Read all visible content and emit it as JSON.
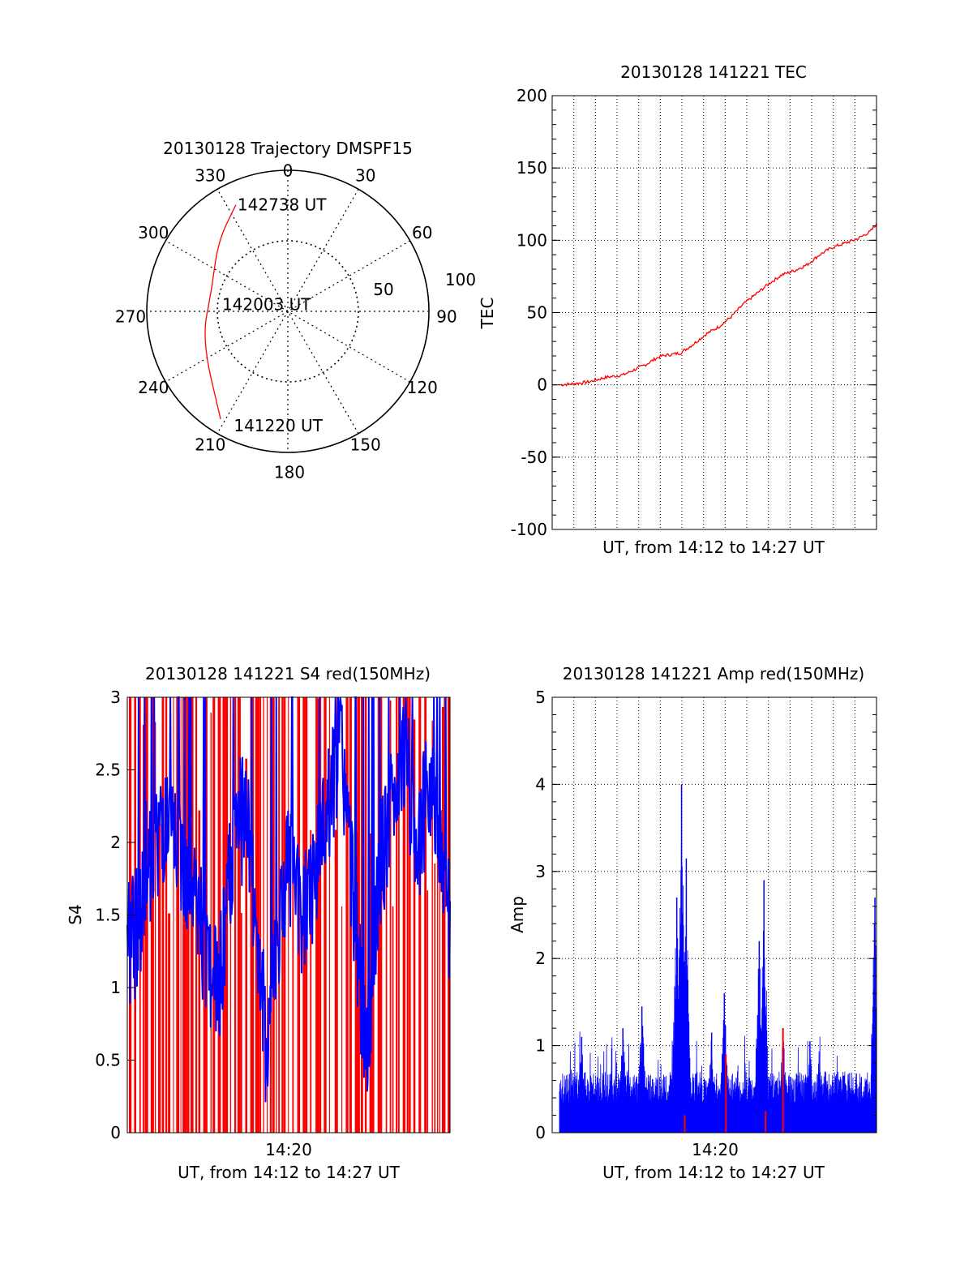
{
  "colors": {
    "trace": "#ff0000",
    "s4_blue": "#0000ff",
    "axis": "#000000",
    "grid": "#000000"
  },
  "chart_data": [
    {
      "id": "trajectory",
      "type": "polar",
      "title": "20130128 Trajectory DMSPF15",
      "azimuth_labels": [
        "0",
        "30",
        "60",
        "90",
        "120",
        "150",
        "180",
        "210",
        "240",
        "270",
        "300",
        "330"
      ],
      "radial_labels": [
        "50",
        "100"
      ],
      "rlim": [
        0,
        100
      ],
      "grid": true,
      "track": {
        "points": [
          [
            334,
            84
          ],
          [
            315,
            70
          ],
          [
            285,
            56
          ],
          [
            252,
            64
          ],
          [
            212,
            90
          ]
        ],
        "labels": [
          {
            "text": "142738 UT",
            "az": 334,
            "r": 84
          },
          {
            "text": "142003 UT",
            "az": 276,
            "r": 48
          },
          {
            "text": "141220 UT",
            "az": 206,
            "r": 90
          }
        ]
      }
    },
    {
      "id": "tec",
      "type": "line",
      "title": "20130128 141221 TEC",
      "xlabel": "UT, from 14:12 to 14:27 UT",
      "ylabel": "TEC",
      "ylim": [
        -100,
        200
      ],
      "yticks": [
        "-100",
        "-50",
        "0",
        "50",
        "100",
        "150",
        "200"
      ],
      "grid": true,
      "x": [
        0,
        0.05,
        0.09,
        0.14,
        0.2,
        0.22,
        0.27,
        0.3,
        0.32,
        0.35,
        0.38,
        0.42,
        0.46,
        0.5,
        0.54,
        0.58,
        0.62,
        0.66,
        0.7,
        0.74,
        0.78,
        0.82,
        0.86,
        0.9,
        0.94,
        0.98,
        1.0
      ],
      "values": [
        0,
        1,
        2,
        5,
        7,
        9,
        14,
        18,
        20,
        21,
        22,
        28,
        35,
        40,
        47,
        56,
        63,
        70,
        76,
        79,
        83,
        90,
        95,
        98,
        101,
        106,
        111
      ]
    },
    {
      "id": "s4",
      "type": "line",
      "title": "20130128 141221 S4 red(150MHz)",
      "xlabel": "UT, from 14:12 to 14:27 UT",
      "ylabel": "S4",
      "ylim": [
        0,
        3
      ],
      "yticks": [
        "0",
        "0.5",
        "1",
        "1.5",
        "2",
        "2.5",
        "3"
      ],
      "xtick_labels": [
        "14:20"
      ],
      "grid": false,
      "series": [
        {
          "x": [
            0,
            0.02,
            0.04,
            0.06,
            0.08,
            0.1,
            0.13,
            0.16,
            0.19,
            0.22,
            0.25,
            0.28,
            0.31,
            0.34,
            0.37,
            0.4,
            0.43,
            0.46,
            0.5,
            0.54,
            0.58,
            0.62,
            0.66,
            0.7,
            0.74,
            0.78,
            0.82,
            0.86,
            0.9,
            0.94,
            0.97,
            1.0
          ],
          "values": [
            1.3,
            1.35,
            1.45,
            1.9,
            1.85,
            2.1,
            2.0,
            1.9,
            1.7,
            1.5,
            1.2,
            0.9,
            1.6,
            2.1,
            2.2,
            1.4,
            0.6,
            1.2,
            1.9,
            1.4,
            1.8,
            2.2,
            2.7,
            1.6,
            0.5,
            1.8,
            2.2,
            2.6,
            2.0,
            2.4,
            2.1,
            1.4
          ]
        }
      ]
    },
    {
      "id": "amp",
      "type": "bar",
      "title": "20130128 141221 Amp red(150MHz)",
      "xlabel": "UT, from 14:12 to 14:27 UT",
      "ylabel": "Amp",
      "ylim": [
        0,
        5
      ],
      "yticks": [
        "0",
        "1",
        "2",
        "3",
        "4",
        "5"
      ],
      "xtick_labels": [
        "14:20"
      ],
      "grid": true,
      "peaks": [
        {
          "x": 0.385,
          "value": 4.0
        },
        {
          "x": 0.4,
          "value": 3.15
        },
        {
          "x": 0.37,
          "value": 2.7
        },
        {
          "x": 0.645,
          "value": 2.9
        },
        {
          "x": 0.63,
          "value": 2.2
        },
        {
          "x": 0.995,
          "value": 2.7
        },
        {
          "x": 0.26,
          "value": 1.45
        },
        {
          "x": 0.52,
          "value": 1.6
        },
        {
          "x": 0.705,
          "value": 1.2
        },
        {
          "x": 0.79,
          "value": 1.05
        },
        {
          "x": 0.48,
          "value": 1.15
        },
        {
          "x": 0.2,
          "value": 1.2
        },
        {
          "x": 0.07,
          "value": 1.1
        }
      ],
      "red_marks": [
        {
          "x": 0.395,
          "value": 0.2
        },
        {
          "x": 0.65,
          "value": 0.25
        },
        {
          "x": 0.525,
          "value": 0.9
        },
        {
          "x": 0.705,
          "value": 1.2
        }
      ]
    }
  ]
}
